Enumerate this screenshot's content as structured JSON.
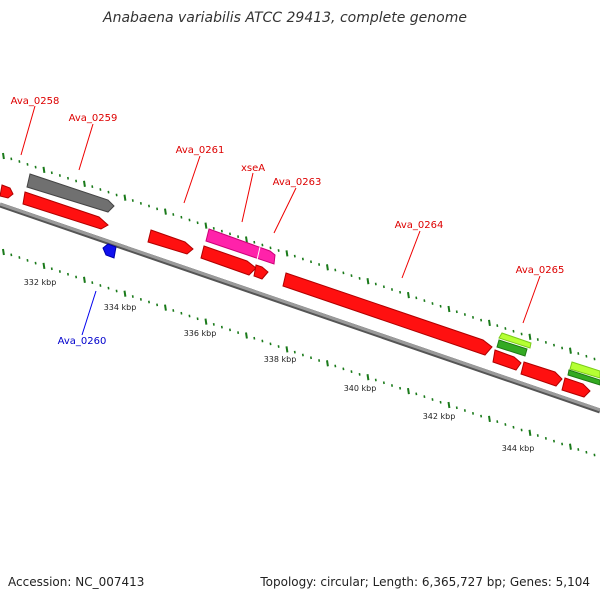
{
  "title": "Anabaena variabilis ATCC 29413, complete genome",
  "footer": {
    "accession": "Accession: NC_007413",
    "summary": "Topology: circular; Length: 6,365,727 bp; Genes: 5,104"
  },
  "colors": {
    "backbone": "#808080",
    "tick": "#1a7a1a",
    "forward_gene": "#ff0000",
    "reverse_gene": "#0000ee",
    "pink_gene": "#ff1aa8",
    "gray_gene": "#666666",
    "green_gene": "#33aa22",
    "lightgreen_gene": "#b5ff33",
    "forward_label": "#dd0000",
    "reverse_label": "#0000cc"
  },
  "scale_labels": [
    "332 kbp",
    "334 kbp",
    "336 kbp",
    "338 kbp",
    "340 kbp",
    "342 kbp",
    "344 kbp"
  ],
  "gene_labels": [
    {
      "text": "Ava_0258",
      "strand": "forward"
    },
    {
      "text": "Ava_0259",
      "strand": "forward"
    },
    {
      "text": "Ava_0260",
      "strand": "reverse"
    },
    {
      "text": "Ava_0261",
      "strand": "forward"
    },
    {
      "text": "xseA",
      "strand": "forward"
    },
    {
      "text": "Ava_0263",
      "strand": "forward"
    },
    {
      "text": "Ava_0264",
      "strand": "forward"
    },
    {
      "text": "Ava_0265",
      "strand": "forward"
    }
  ]
}
